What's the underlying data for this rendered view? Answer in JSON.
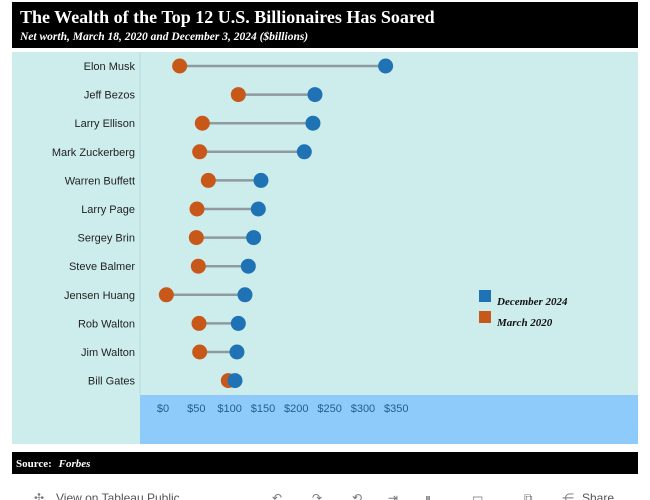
{
  "header": {
    "title": "The Wealth of the Top 12 U.S. Billionaires Has Soared",
    "subtitle": "Net worth, March 18, 2020 and December 3, 2024 ($billions)"
  },
  "footer": {
    "source_label": "Source:",
    "source_value": "Forbes"
  },
  "toolbar": {
    "view_label": "View on Tableau Public",
    "share_label": "Share"
  },
  "colors": {
    "header_bg": "#000000",
    "plot_bg": "#cdeded",
    "axis_bg": "#8ecbfa",
    "dec_2024": "#1f73b5",
    "mar_2020": "#c8581a",
    "connector": "#8e9aa0"
  },
  "chart_data": {
    "type": "dumbbell",
    "title": "The Wealth of the Top 12 U.S. Billionaires Has Soared",
    "subtitle": "Net worth, March 18, 2020 and December 3, 2024 ($billions)",
    "categories": [
      "Elon Musk",
      "Jeff Bezos",
      "Larry Ellison",
      "Mark Zuckerberg",
      "Warren Buffett",
      "Larry Page",
      "Sergey Brin",
      "Steve Balmer",
      "Jensen Huang",
      "Rob Walton",
      "Jim Walton",
      "Bill Gates"
    ],
    "series": [
      {
        "name": "December 2024",
        "values": [
          334,
          228,
          225,
          212,
          147,
          143,
          136,
          128,
          123,
          113,
          111,
          108
        ]
      },
      {
        "name": "March 2020",
        "values": [
          25,
          113,
          59,
          55,
          68,
          51,
          50,
          53,
          5,
          54,
          55,
          98
        ]
      }
    ],
    "xlim": [
      -5,
      350
    ],
    "xticks": [
      0,
      50,
      100,
      150,
      200,
      250,
      300,
      350
    ],
    "tick_labels": [
      "$0",
      "$50",
      "$100",
      "$150",
      "$200",
      "$250",
      "$300",
      "$350"
    ],
    "legend": [
      "December 2024",
      "March 2020"
    ],
    "legend_position": "lower-right",
    "grid": false
  }
}
